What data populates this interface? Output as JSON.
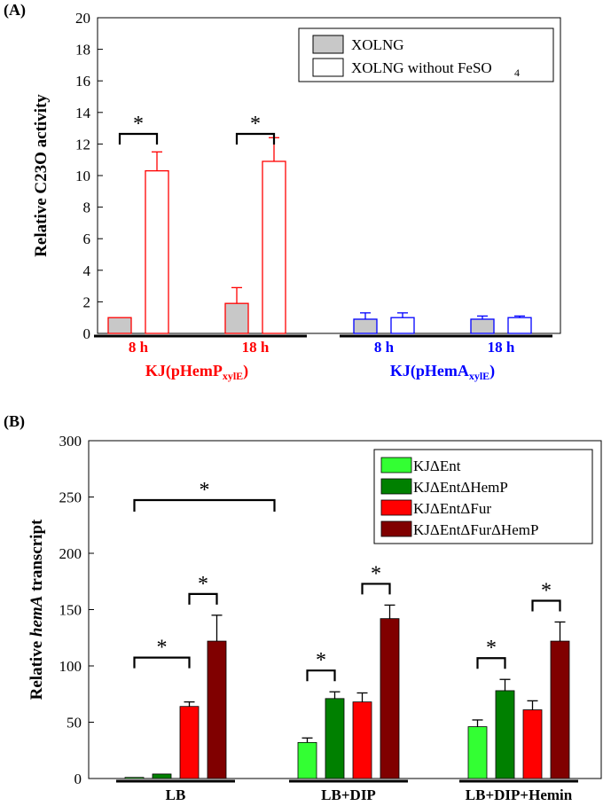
{
  "colors": {
    "kj_hemp": "#ff0000",
    "kj_hema": "#0000ff",
    "xolng_fill": "#c8c8c8",
    "ent": "#33ff33",
    "ent_hemp": "#008000",
    "ent_fur": "#ff0000",
    "ent_fur_hemp": "#800000"
  },
  "chart_data": [
    {
      "panel": "(A)",
      "type": "bar",
      "ylabel": "Relative C23O activity",
      "ylim": [
        0,
        20
      ],
      "yticks": [
        "0",
        "2",
        "4",
        "6",
        "8",
        "10",
        "12",
        "14",
        "16",
        "18",
        "20"
      ],
      "legend": {
        "placement": "top-right",
        "entries": [
          "XOLNG",
          "XOLNG without FeSO",
          "4"
        ]
      },
      "groups": [
        {
          "strain": [
            "KJ(pHemP",
            "xylE",
            ")"
          ],
          "strain_color": "#ff0000",
          "timepoints": [
            {
              "label": "8 h",
              "values": [
                1.0,
                10.3
              ],
              "errors": [
                0,
                1.2
              ],
              "sig": "*"
            },
            {
              "label": "18 h",
              "values": [
                1.9,
                10.9
              ],
              "errors": [
                1.0,
                1.5
              ],
              "sig": "*"
            }
          ]
        },
        {
          "strain": [
            "KJ(pHemA",
            "xylE",
            ")"
          ],
          "strain_color": "#0000ff",
          "timepoints": [
            {
              "label": "8 h",
              "values": [
                0.9,
                1.0
              ],
              "errors": [
                0.4,
                0.3
              ],
              "sig": ""
            },
            {
              "label": "18 h",
              "values": [
                0.9,
                1.0
              ],
              "errors": [
                0.2,
                0.1
              ],
              "sig": ""
            }
          ]
        }
      ]
    },
    {
      "panel": "(B)",
      "type": "bar",
      "ylabel": [
        "Relative ",
        "hemA",
        " transcript"
      ],
      "ylim": [
        0,
        300
      ],
      "yticks": [
        "0",
        "50",
        "100",
        "150",
        "200",
        "250",
        "300"
      ],
      "legend": {
        "placement": "top-right"
      },
      "categories": [
        "LB",
        "LB+DIP",
        "LB+DIP+Hemin"
      ],
      "series": [
        {
          "name": "KJΔEnt",
          "values": [
            1,
            32,
            46
          ],
          "errors": [
            0,
            4,
            6
          ]
        },
        {
          "name": "KJΔEntΔHemP",
          "values": [
            4,
            71,
            78
          ],
          "errors": [
            0,
            6,
            10
          ]
        },
        {
          "name": "KJΔEntΔFur",
          "values": [
            64,
            68,
            61
          ],
          "errors": [
            4,
            8,
            8
          ]
        },
        {
          "name": "KJΔEntΔFurΔHemP",
          "values": [
            122,
            142,
            122
          ],
          "errors": [
            23,
            12,
            17
          ]
        }
      ],
      "significance": [
        {
          "category": 0,
          "from_series": 0,
          "to_series": 2,
          "label": "*"
        },
        {
          "category": 0,
          "from_series": 2,
          "to_series": 3,
          "label": "*"
        },
        {
          "category": 1,
          "from_series": 0,
          "to_series": 1,
          "label": "*"
        },
        {
          "category": 1,
          "from_series": 2,
          "to_series": 3,
          "label": "*"
        },
        {
          "category": 2,
          "from_series": 0,
          "to_series": 1,
          "label": "*"
        },
        {
          "category": 2,
          "from_series": 2,
          "to_series": 3,
          "label": "*"
        },
        {
          "from_category": 0,
          "to_category": 1,
          "label": "*"
        }
      ]
    }
  ]
}
